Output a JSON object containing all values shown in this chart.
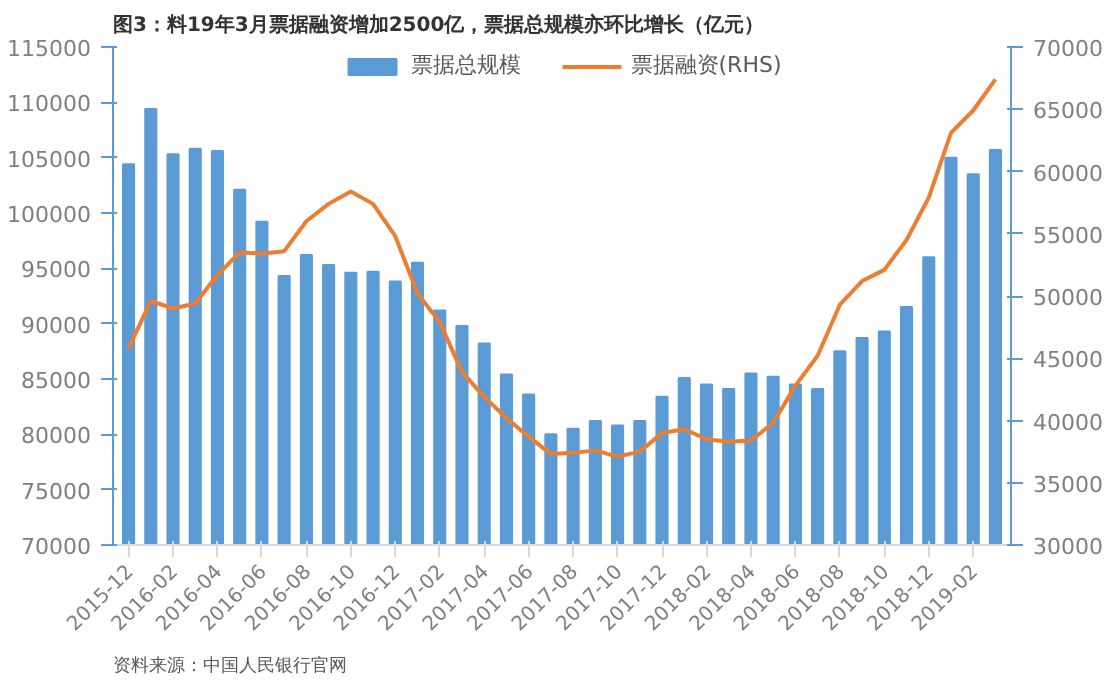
{
  "chart_data": {
    "type": "bar",
    "title": "图3：料19年3月票据融资增加2500亿，票据总规模亦环比增长（亿元）",
    "categories": [
      "2015-12",
      null,
      "2016-02",
      null,
      "2016-04",
      null,
      "2016-06",
      null,
      "2016-08",
      null,
      "2016-10",
      null,
      "2016-12",
      null,
      "2017-02",
      null,
      "2017-04",
      null,
      "2017-06",
      null,
      "2017-08",
      null,
      "2017-10",
      null,
      "2017-12",
      null,
      "2018-02",
      null,
      "2018-04",
      null,
      "2018-06",
      null,
      "2018-08",
      null,
      "2018-10",
      null,
      "2018-12",
      null,
      "2019-02",
      null
    ],
    "series": [
      {
        "name": "票据总规模",
        "color": "#5b9bd5",
        "values": [
          104400,
          109400,
          105300,
          105800,
          105600,
          102100,
          99200,
          94300,
          96200,
          95300,
          94600,
          94700,
          93800,
          95500,
          91200,
          89800,
          88200,
          85400,
          83600,
          80000,
          80500,
          81200,
          80800,
          81200,
          83400,
          85100,
          84500,
          84100,
          85500,
          85200,
          84500,
          84100,
          87500,
          88700,
          89300,
          91500,
          96000,
          105000,
          103500,
          105700
        ]
      },
      {
        "name": "票据融资(RHS)",
        "type": "line",
        "axis": "y2",
        "color": "#ed7d31",
        "values": [
          45800,
          49600,
          49000,
          49400,
          51700,
          53500,
          53400,
          53600,
          56000,
          57400,
          58400,
          57400,
          54800,
          50200,
          47900,
          43900,
          41900,
          40200,
          38700,
          37300,
          37400,
          37600,
          37100,
          37500,
          39000,
          39300,
          38500,
          38300,
          38400,
          39800,
          42800,
          45200,
          49300,
          51200,
          52100,
          54500,
          57900,
          63100,
          64900,
          67400
        ]
      }
    ],
    "ylim": [
      70000,
      115000
    ],
    "yticks": [
      70000,
      75000,
      80000,
      85000,
      90000,
      95000,
      100000,
      105000,
      110000,
      115000
    ],
    "y2lim": [
      30000,
      70000
    ],
    "y2ticks": [
      30000,
      35000,
      40000,
      45000,
      50000,
      55000,
      60000,
      65000,
      70000
    ],
    "legend": "top",
    "grid": false,
    "annotations": [
      "资料来源：中国人民银行官网"
    ]
  }
}
